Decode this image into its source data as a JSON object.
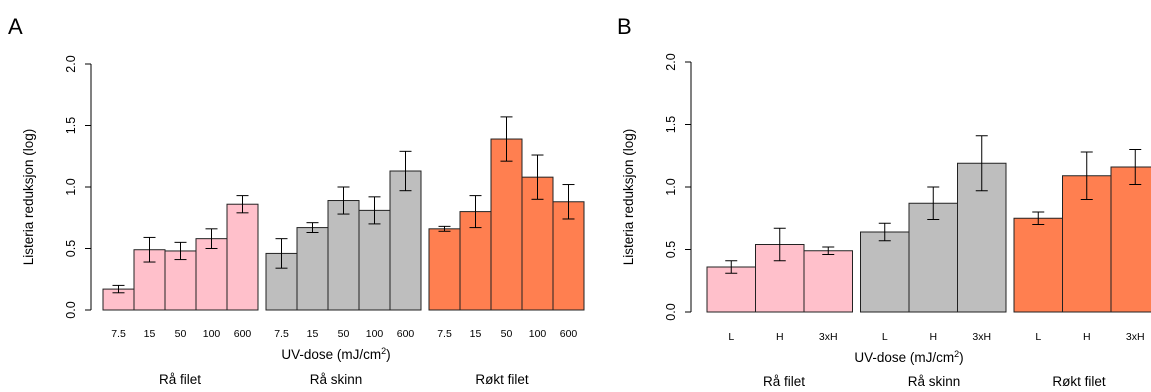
{
  "chart_data": [
    {
      "panel": "A",
      "type": "bar",
      "ylabel": "Listeria reduksjon (log)",
      "xlabel": "UV-dose (mJ/cm²)",
      "ylim": [
        0,
        2.0
      ],
      "yticks": [
        "0.0",
        "0.5",
        "1.0",
        "1.5",
        "2.0"
      ],
      "groups": [
        {
          "label": "Rå filet",
          "color": "#FFC0CB",
          "categories": [
            "7.5",
            "15",
            "50",
            "100",
            "600"
          ],
          "values": [
            0.17,
            0.49,
            0.48,
            0.58,
            0.86
          ],
          "errors": [
            0.03,
            0.1,
            0.07,
            0.08,
            0.07
          ]
        },
        {
          "label": "Rå skinn",
          "color": "#BEBEBE",
          "categories": [
            "7.5",
            "15",
            "50",
            "100",
            "600"
          ],
          "values": [
            0.46,
            0.67,
            0.89,
            0.81,
            1.13
          ],
          "errors": [
            0.12,
            0.04,
            0.11,
            0.11,
            0.16
          ]
        },
        {
          "label": "Røkt filet",
          "color": "#FF7F50",
          "categories": [
            "7.5",
            "15",
            "50",
            "100",
            "600"
          ],
          "values": [
            0.66,
            0.8,
            1.39,
            1.08,
            0.88
          ],
          "errors": [
            0.02,
            0.13,
            0.18,
            0.18,
            0.14
          ]
        }
      ]
    },
    {
      "panel": "B",
      "type": "bar",
      "ylabel": "Listeria reduksjon (log)",
      "xlabel": "UV-dose (mJ/cm²)",
      "ylim": [
        0,
        2.0
      ],
      "yticks": [
        "0.0",
        "0.5",
        "1.0",
        "1.5",
        "2.0"
      ],
      "groups": [
        {
          "label": "Rå filet",
          "color": "#FFC0CB",
          "categories": [
            "L",
            "H",
            "3xH"
          ],
          "values": [
            0.36,
            0.54,
            0.49
          ],
          "errors": [
            0.05,
            0.13,
            0.03
          ]
        },
        {
          "label": "Rå skinn",
          "color": "#BEBEBE",
          "categories": [
            "L",
            "H",
            "3xH"
          ],
          "values": [
            0.64,
            0.87,
            1.19
          ],
          "errors": [
            0.07,
            0.13,
            0.22
          ]
        },
        {
          "label": "Røkt filet",
          "color": "#FF7F50",
          "categories": [
            "L",
            "H",
            "3xH"
          ],
          "values": [
            0.75,
            1.09,
            1.16
          ],
          "errors": [
            0.05,
            0.19,
            0.14
          ]
        }
      ]
    }
  ]
}
